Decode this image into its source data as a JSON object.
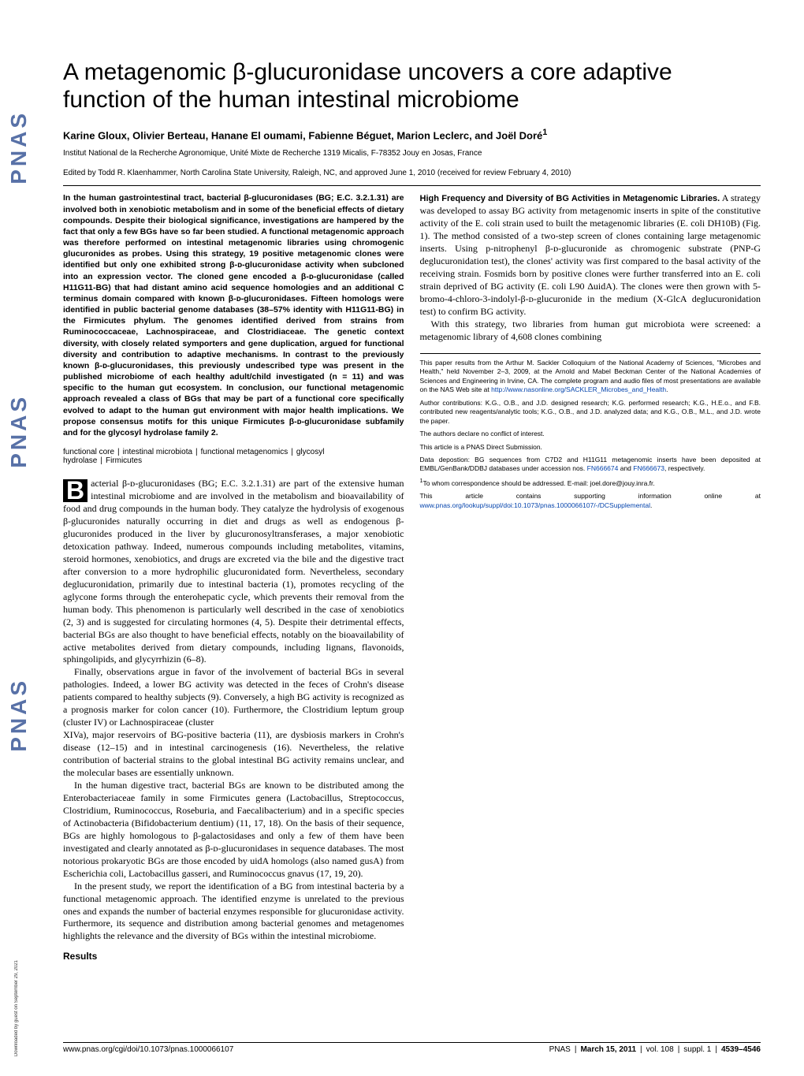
{
  "watermark": "PNAS",
  "download_note": "Downloaded by guest on September 29, 2021",
  "title": "A metagenomic β-glucuronidase uncovers a core adaptive function of the human intestinal microbiome",
  "authors": "Karine Gloux, Olivier Berteau, Hanane El oumami, Fabienne Béguet, Marion Leclerc, and Joël Doré",
  "author_sup": "1",
  "affiliation": "Institut National de la Recherche Agronomique, Unité Mixte de Recherche 1319 Micalis, F-78352 Jouy en Josas, France",
  "edited": "Edited by Todd R. Klaenhammer, North Carolina State University, Raleigh, NC, and approved June 1, 2010 (received for review February 4, 2010)",
  "abstract": "In the human gastrointestinal tract, bacterial β-glucuronidases (BG; E.C. 3.2.1.31) are involved both in xenobiotic metabolism and in some of the beneficial effects of dietary compounds. Despite their biological significance, investigations are hampered by the fact that only a few BGs have so far been studied. A functional metagenomic approach was therefore performed on intestinal metagenomic libraries using chromogenic glucuronides as probes. Using this strategy, 19 positive metagenomic clones were identified but only one exhibited strong β-ᴅ-glucuronidase activity when subcloned into an expression vector. The cloned gene encoded a β-ᴅ-glucuronidase (called H11G11-BG) that had distant amino acid sequence homologies and an additional C terminus domain compared with known β-ᴅ-glucuronidases. Fifteen homologs were identified in public bacterial genome databases (38–57% identity with H11G11-BG) in the Firmicutes phylum. The genomes identified derived from strains from Ruminococcaceae, Lachnospiraceae, and Clostridiaceae. The genetic context diversity, with closely related symporters and gene duplication, argued for functional diversity and contribution to adaptive mechanisms. In contrast to the previously known β-ᴅ-glucuronidases, this previously undescribed type was present in the published microbiome of each healthy adult/child investigated (n = 11) and was specific to the human gut ecosystem. In conclusion, our functional metagenomic approach revealed a class of BGs that may be part of a functional core specifically evolved to adapt to the human gut environment with major health implications. We propose consensus motifs for this unique Firmicutes β-ᴅ-glucuronidase subfamily and for the glycosyl hydrolase family 2.",
  "keywords": [
    "functional core",
    "intestinal microbiota",
    "functional metagenomics",
    "glycosyl hydrolase",
    "Firmicutes"
  ],
  "body_p1_first": "acterial β-ᴅ-glucuronidases (BG; E.C. 3.2.1.31) are part of the extensive human intestinal microbiome and are involved in the metabolism and bioavailability of food and drug compounds in the human body. They catalyze the hydrolysis of exogenous β-glucuronides naturally occurring in diet and drugs as well as endogenous β-glucuronides produced in the liver by glucuronosyltransferases, a major xenobiotic detoxication pathway. Indeed, numerous compounds including metabolites, vitamins, steroid hormones, xenobiotics, and drugs are excreted via the bile and the digestive tract after conversion to a more hydrophilic glucuronidated form. Nevertheless, secondary deglucuronidation, primarily due to intestinal bacteria (1), promotes recycling of the aglycone forms through the enterohepatic cycle, which prevents their removal from the human body. This phenomenon is particularly well described in the case of xenobiotics (2, 3) and is suggested for circulating hormones (4, 5). Despite their detrimental effects, bacterial BGs are also thought to have beneficial effects, notably on the bioavailability of active metabolites derived from dietary compounds, including lignans, flavonoids, sphingolipids, and glycyrrhizin (6–8).",
  "body_p2": "Finally, observations argue in favor of the involvement of bacterial BGs in several pathologies. Indeed, a lower BG activity was detected in the feces of Crohn's disease patients compared to healthy subjects (9). Conversely, a high BG activity is recognized as a prognosis marker for colon cancer (10). Furthermore, the Clostridium leptum group (cluster IV) or Lachnospiraceae (cluster",
  "body_p3": "XIVa), major reservoirs of BG-positive bacteria (11), are dysbiosis markers in Crohn's disease (12–15) and in intestinal carcinogenesis (16). Nevertheless, the relative contribution of bacterial strains to the global intestinal BG activity remains unclear, and the molecular bases are essentially unknown.",
  "body_p4": "In the human digestive tract, bacterial BGs are known to be distributed among the Enterobacteriaceae family in some Firmicutes genera (Lactobacillus, Streptococcus, Clostridium, Ruminococcus, Roseburia, and Faecalibacterium) and in a specific species of Actinobacteria (Bifidobacterium dentium) (11, 17, 18). On the basis of their sequence, BGs are highly homologous to β-galactosidases and only a few of them have been investigated and clearly annotated as β-ᴅ-glucuronidases in sequence databases. The most notorious prokaryotic BGs are those encoded by uidA homologs (also named gusA) from Escherichia coli, Lactobacillus gasseri, and Ruminococcus gnavus (17, 19, 20).",
  "body_p5": "In the present study, we report the identification of a BG from intestinal bacteria by a functional metagenomic approach. The identified enzyme is unrelated to the previous ones and expands the number of bacterial enzymes responsible for glucuronidase activity. Furthermore, its sequence and distribution among bacterial genomes and metagenomes highlights the relevance and the diversity of BGs within the intestinal microbiome.",
  "results_heading": "Results",
  "results_sub1": "High Frequency and Diversity of BG Activities in Metagenomic Libraries.",
  "results_p1": " A strategy was developed to assay BG activity from metagenomic inserts in spite of the constitutive activity of the E. coli strain used to built the metagenomic libraries (E. coli DH10B) (Fig. 1). The method consisted of a two-step screen of clones containing large metagenomic inserts. Using p-nitrophenyl β-ᴅ-glucuronide as chromogenic substrate (PNP-G deglucuronidation test), the clones' activity was first compared to the basal activity of the receiving strain. Fosmids born by positive clones were further transferred into an E. coli strain deprived of BG activity (E. coli L90 ΔuidA). The clones were then grown with 5-bromo-4-chloro-3-indolyl-β-ᴅ-glucuronide in the medium (X-GlcA deglucuronidation test) to confirm BG activity.",
  "results_p2": "With this strategy, two libraries from human gut microbiota were screened: a metagenomic library of 4,608 clones combining",
  "fn_colloquium": "This paper results from the Arthur M. Sackler Colloquium of the National Academy of Sciences, \"Microbes and Health,\" held November 2–3, 2009, at the Arnold and Mabel Beckman Center of the National Academies of Sciences and Engineering in Irvine, CA. The complete program and audio files of most presentations are available on the NAS Web site at ",
  "fn_colloquium_link": "http://www.nasonline.org/SACKLER_Microbes_and_Health",
  "fn_contributions": "Author contributions: K.G., O.B., and J.D. designed research; K.G. performed research; K.G., H.E.o., and F.B. contributed new reagents/analytic tools; K.G., O.B., and J.D. analyzed data; and K.G., O.B., M.L., and J.D. wrote the paper.",
  "fn_conflict": "The authors declare no conflict of interest.",
  "fn_submission": "This article is a PNAS Direct Submission.",
  "fn_deposition": "Data depostion: BG sequences from C7D2 and H11G11 metagenomic inserts have been deposited at EMBL/GenBank/DDBJ databases under accession nos. ",
  "fn_deposition_link1": "FN666674",
  "fn_deposition_mid": " and ",
  "fn_deposition_link2": "FN666673",
  "fn_deposition_end": ", respectively.",
  "fn_corresp": "To whom correspondence should be addressed. E-mail: joel.dore@jouy.inra.fr.",
  "fn_si": "This article contains supporting information online at ",
  "fn_si_link": "www.pnas.org/lookup/suppl/doi:10.1073/pnas.1000066107/-/DCSupplemental",
  "footer_doi": "www.pnas.org/cgi/doi/10.1073/pnas.1000066107",
  "footer_journal": "PNAS",
  "footer_date": "March 15, 2011",
  "footer_vol": "vol. 108",
  "footer_suppl": "suppl. 1",
  "footer_pages": "4539–4546"
}
